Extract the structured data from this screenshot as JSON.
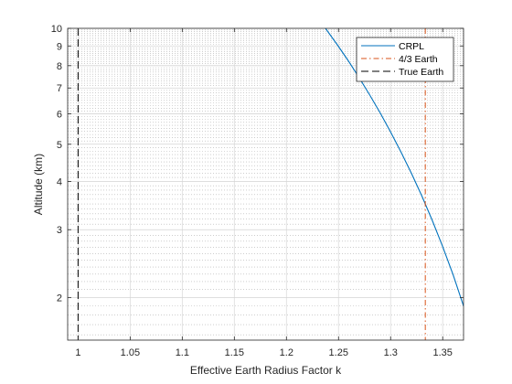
{
  "chart_data": {
    "type": "line",
    "xlabel": "Effective Earth Radius Factor k",
    "ylabel": "Altitude (km)",
    "xlim": [
      0.99,
      1.37
    ],
    "ylim": [
      1.55,
      10
    ],
    "yscale": "log",
    "grid": true,
    "minor_grid": true,
    "legend_position": "top-right",
    "x_ticks": [
      1,
      1.05,
      1.1,
      1.15,
      1.2,
      1.25,
      1.3,
      1.35
    ],
    "x_tick_labels": [
      "1",
      "1.05",
      "1.1",
      "1.15",
      "1.2",
      "1.25",
      "1.3",
      "1.35"
    ],
    "y_ticks": [
      2,
      3,
      4,
      5,
      6,
      7,
      8,
      9,
      10
    ],
    "y_tick_labels": [
      "2",
      "3",
      "4",
      "5",
      "6",
      "7",
      "8",
      "9",
      "10"
    ],
    "series": [
      {
        "name": "CRPL",
        "style": "solid",
        "color": "#0072BD",
        "x": [
          1.2375,
          1.25,
          1.26,
          1.27,
          1.28,
          1.29,
          1.3,
          1.31,
          1.32,
          1.33,
          1.34,
          1.35,
          1.36,
          1.37
        ],
        "y": [
          10,
          8.97,
          8.19,
          7.43,
          6.71,
          6.03,
          5.38,
          4.77,
          4.2,
          3.67,
          3.17,
          2.71,
          2.29,
          1.9
        ]
      },
      {
        "name": "4/3 Earth",
        "style": "dashdot",
        "color": "#D95319",
        "vertical_x": 1.3333
      },
      {
        "name": "True Earth",
        "style": "dashed",
        "color": "#000000",
        "vertical_x": 1.0
      }
    ]
  }
}
